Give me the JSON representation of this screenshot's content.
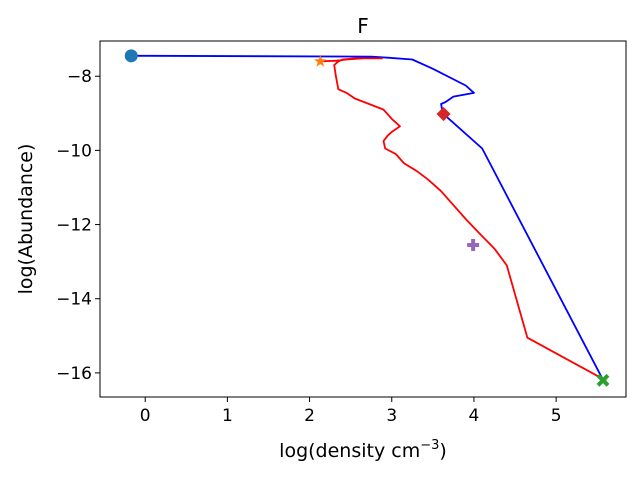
{
  "chart_data": {
    "type": "line",
    "title": "F",
    "xlabel_main": "log(density cm",
    "xlabel_sup": "−3",
    "xlabel_end": ")",
    "ylabel": "log(Abundance)",
    "xlim": [
      -0.55,
      5.85
    ],
    "ylim": [
      -16.65,
      -7.05
    ],
    "xticks": [
      0,
      1,
      2,
      3,
      4,
      5
    ],
    "yticks": [
      -8,
      -10,
      -12,
      -14,
      -16
    ],
    "xtick_labels": [
      "0",
      "1",
      "2",
      "3",
      "4",
      "5"
    ],
    "ytick_labels": [
      "−8",
      "−10",
      "−12",
      "−14",
      "−16"
    ],
    "grid": false,
    "series": [
      {
        "color": "#0000ff",
        "x": [
          -0.18,
          0.05,
          2.75,
          2.95,
          3.25,
          3.5,
          3.9,
          4.0,
          3.75,
          3.65,
          3.6,
          3.62,
          4.1,
          5.55,
          5.58
        ],
        "y": [
          -7.45,
          -7.45,
          -7.47,
          -7.5,
          -7.55,
          -7.8,
          -8.25,
          -8.45,
          -8.55,
          -8.7,
          -8.75,
          -9.0,
          -9.95,
          -16.1,
          -16.2
        ]
      },
      {
        "color": "#ff0000",
        "x": [
          2.13,
          2.33,
          2.45,
          2.65,
          2.8,
          2.88,
          2.87,
          2.55,
          2.4,
          2.35,
          2.3,
          2.32,
          2.35,
          2.45,
          2.55,
          2.9,
          3.0,
          3.1,
          3.0,
          2.95,
          2.9,
          2.92,
          3.05,
          3.15,
          3.3,
          3.42,
          3.5,
          3.6,
          3.9,
          4.05,
          4.25,
          4.4,
          4.65,
          5.6
        ],
        "y": [
          -7.6,
          -7.58,
          -7.55,
          -7.52,
          -7.52,
          -7.52,
          -7.52,
          -7.52,
          -7.55,
          -7.6,
          -7.7,
          -8.0,
          -8.35,
          -8.45,
          -8.6,
          -8.9,
          -9.15,
          -9.35,
          -9.5,
          -9.6,
          -9.75,
          -9.95,
          -10.1,
          -10.35,
          -10.55,
          -10.75,
          -10.9,
          -11.1,
          -11.85,
          -12.2,
          -12.65,
          -13.1,
          -15.05,
          -16.2
        ]
      }
    ],
    "markers": [
      {
        "name": "circle",
        "shape": "circle",
        "color": "#1f77b4",
        "x": -0.17,
        "y": -7.45
      },
      {
        "name": "star",
        "shape": "star",
        "color": "#ff7f0e",
        "x": 2.13,
        "y": -7.6
      },
      {
        "name": "diamond",
        "shape": "diamond",
        "color": "#d62728",
        "x": 3.63,
        "y": -9.02
      },
      {
        "name": "plus",
        "shape": "plus",
        "color": "#9467bd",
        "x": 3.99,
        "y": -12.55
      },
      {
        "name": "x",
        "shape": "x",
        "color": "#2ca02c",
        "x": 5.57,
        "y": -16.2
      }
    ]
  }
}
